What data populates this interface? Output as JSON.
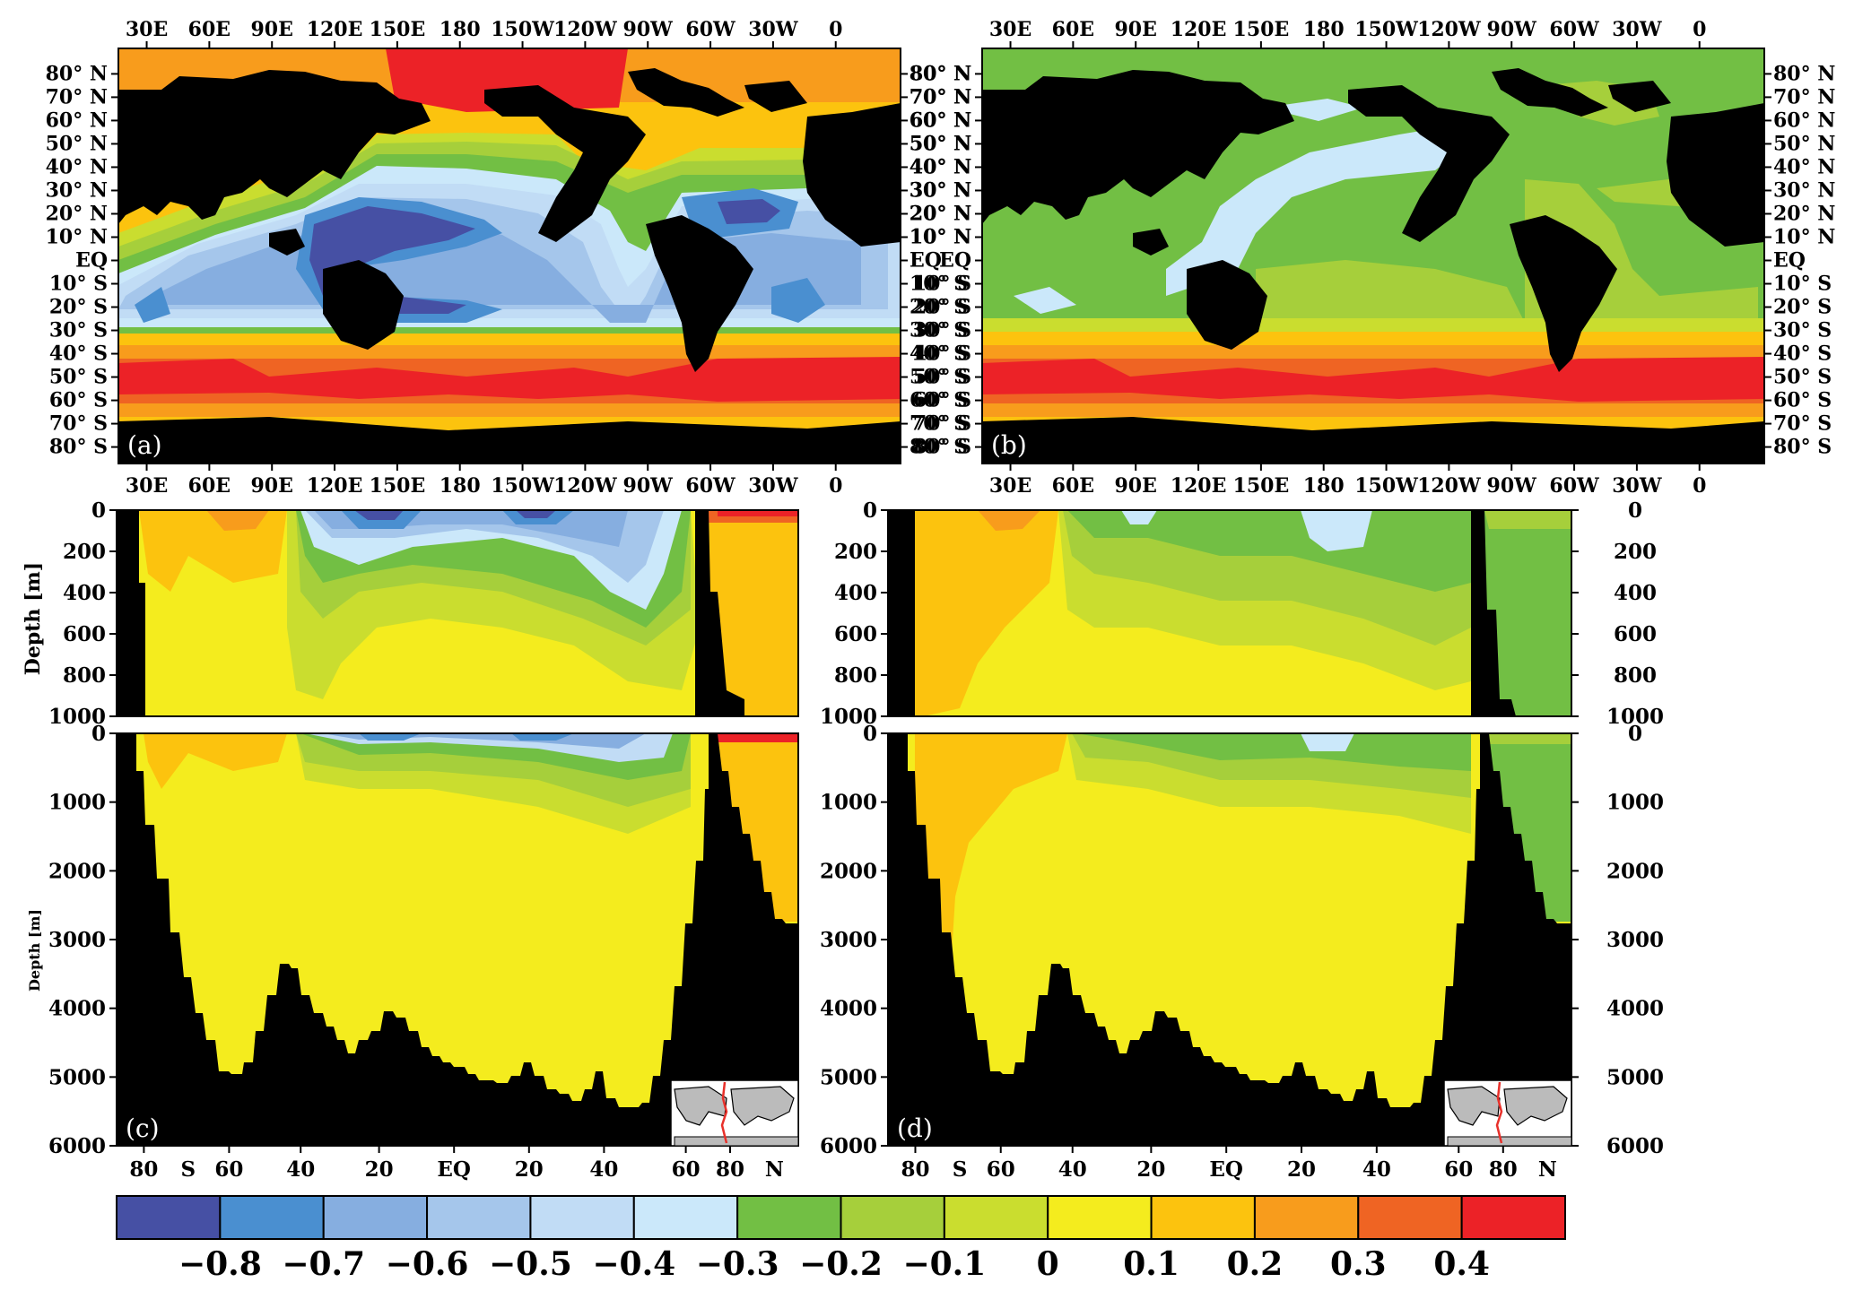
{
  "figure": {
    "panels": [
      {
        "id": "a",
        "label": "(a)"
      },
      {
        "id": "b",
        "label": "(b)"
      },
      {
        "id": "c",
        "label": "(c)"
      },
      {
        "id": "d",
        "label": "(d)"
      }
    ],
    "depth_axis_label": "Depth [m]"
  },
  "chart_data": [
    {
      "type": "heatmap",
      "panel": "(a)",
      "x_ticks": [
        "30E",
        "60E",
        "90E",
        "120E",
        "150E",
        "180",
        "150W",
        "120W",
        "90W",
        "60W",
        "30W",
        "0"
      ],
      "y_ticks": [
        "80° N",
        "70° N",
        "60° N",
        "50° N",
        "40° N",
        "30° N",
        "20° N",
        "10° N",
        "EQ",
        "10° S",
        "20° S",
        "30° S",
        "40° S",
        "50° S",
        "60° S",
        "70° S",
        "80° S"
      ],
      "grid": false
    },
    {
      "type": "heatmap",
      "panel": "(b)",
      "x_ticks": [
        "30E",
        "60E",
        "90E",
        "120E",
        "150E",
        "180",
        "150W",
        "120W",
        "90W",
        "60W",
        "30W",
        "0"
      ],
      "y_ticks": [
        "80° N",
        "70° N",
        "60° N",
        "50° N",
        "40° N",
        "30° N",
        "20° N",
        "10° N",
        "EQ",
        "10° S",
        "20° S",
        "30° S",
        "40° S",
        "50° S",
        "60° S",
        "70° S",
        "80° S"
      ],
      "grid": false
    },
    {
      "type": "heatmap",
      "panel": "(c)",
      "x_ticks": [
        "80",
        "S",
        "60",
        "40",
        "20",
        "EQ",
        "20",
        "40",
        "60",
        "80",
        "N"
      ],
      "upper_depth_ticks": [
        "0",
        "200",
        "400",
        "600",
        "800",
        "1000"
      ],
      "upper_ylim": [
        0,
        1000
      ],
      "lower_depth_ticks": [
        "0",
        "1000",
        "2000",
        "3000",
        "4000",
        "5000",
        "6000"
      ],
      "lower_ylim": [
        0,
        6000
      ],
      "ylabel": "Depth [m]"
    },
    {
      "type": "heatmap",
      "panel": "(d)",
      "x_ticks": [
        "80",
        "S",
        "60",
        "40",
        "20",
        "EQ",
        "20",
        "40",
        "60",
        "80",
        "N"
      ],
      "upper_depth_ticks": [
        "0",
        "200",
        "400",
        "600",
        "800",
        "1000"
      ],
      "upper_ylim": [
        0,
        1000
      ],
      "lower_depth_ticks": [
        "0",
        "1000",
        "2000",
        "3000",
        "4000",
        "5000",
        "6000"
      ],
      "lower_ylim": [
        0,
        6000
      ]
    }
  ],
  "colorbar": {
    "labels": [
      "−0.8",
      "−0.7",
      "−0.6",
      "−0.5",
      "−0.4",
      "−0.3",
      "−0.2",
      "−0.1",
      "0",
      "0.1",
      "0.2",
      "0.3",
      "0.4"
    ],
    "colors": [
      "#4650a4",
      "#4a8fd0",
      "#86aee0",
      "#a5c6eb",
      "#c1dcf5",
      "#cbe8fa",
      "#72bf44",
      "#a6cf3b",
      "#cadd2f",
      "#f4ec1e",
      "#fcc30e",
      "#f89c1c",
      "#ef6423",
      "#ec2227"
    ]
  },
  "palette": {
    "land": "#000000"
  }
}
